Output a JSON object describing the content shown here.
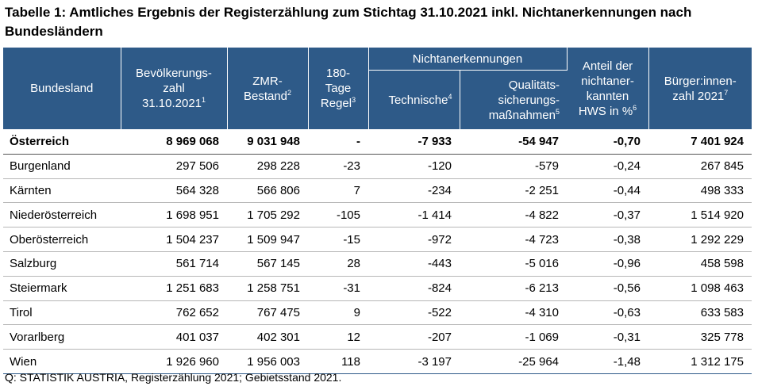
{
  "title": "Tabelle 1: Amtliches Ergebnis der Registerzählung zum Stichtag 31.10.2021 inkl. Nichtanerkennungen nach Bundesländern",
  "header": {
    "bundesland": "Bundesland",
    "bevoelkerung_l1": "Bevölkerungs-",
    "bevoelkerung_l2": "zahl",
    "bevoelkerung_l3": "31.10.2021",
    "bevoelkerung_fn": "1",
    "zmr_l1": "ZMR-",
    "zmr_l2": "Bestand",
    "zmr_fn": "2",
    "tage_l1": "180-",
    "tage_l2": "Tage",
    "tage_l3": "Regel",
    "tage_fn": "3",
    "nicht_group": "Nichtanerkennungen",
    "technische": "Technische",
    "technische_fn": "4",
    "qual_l1": "Qualitäts-",
    "qual_l2": "sicherungs-",
    "qual_l3": "maßnahmen",
    "qual_fn": "5",
    "anteil_l1": "Anteil der",
    "anteil_l2": "nichtaner-",
    "anteil_l3": "kannten",
    "anteil_l4": "HWS in %",
    "anteil_fn": "6",
    "buerger_l1": "Bürger:innen-",
    "buerger_l2": "zahl 2021",
    "buerger_fn": "7"
  },
  "rows": [
    {
      "name": "Österreich",
      "bev": "8 969 068",
      "zmr": "9 031 948",
      "tage": "-",
      "tech": "-7 933",
      "qual": "-54 947",
      "anteil": "-0,70",
      "buerger": "7 401 924"
    },
    {
      "name": "Burgenland",
      "bev": "297 506",
      "zmr": "298 228",
      "tage": "-23",
      "tech": "-120",
      "qual": "-579",
      "anteil": "-0,24",
      "buerger": "267 845"
    },
    {
      "name": "Kärnten",
      "bev": "564 328",
      "zmr": "566 806",
      "tage": "7",
      "tech": "-234",
      "qual": "-2 251",
      "anteil": "-0,44",
      "buerger": "498 333"
    },
    {
      "name": "Niederösterreich",
      "bev": "1 698 951",
      "zmr": "1 705 292",
      "tage": "-105",
      "tech": "-1 414",
      "qual": "-4 822",
      "anteil": "-0,37",
      "buerger": "1 514 920"
    },
    {
      "name": "Oberösterreich",
      "bev": "1 504 237",
      "zmr": "1 509 947",
      "tage": "-15",
      "tech": "-972",
      "qual": "-4 723",
      "anteil": "-0,38",
      "buerger": "1 292 229"
    },
    {
      "name": "Salzburg",
      "bev": "561 714",
      "zmr": "567 145",
      "tage": "28",
      "tech": "-443",
      "qual": "-5 016",
      "anteil": "-0,96",
      "buerger": "458 598"
    },
    {
      "name": "Steiermark",
      "bev": "1 251 683",
      "zmr": "1 258 751",
      "tage": "-31",
      "tech": "-824",
      "qual": "-6 213",
      "anteil": "-0,56",
      "buerger": "1 098 463"
    },
    {
      "name": "Tirol",
      "bev": "762 652",
      "zmr": "767 475",
      "tage": "9",
      "tech": "-522",
      "qual": "-4 310",
      "anteil": "-0,63",
      "buerger": "633 583"
    },
    {
      "name": "Vorarlberg",
      "bev": "401 037",
      "zmr": "402 301",
      "tage": "12",
      "tech": "-207",
      "qual": "-1 069",
      "anteil": "-0,31",
      "buerger": "325 778"
    },
    {
      "name": "Wien",
      "bev": "1 926 960",
      "zmr": "1 956 003",
      "tage": "118",
      "tech": "-3 197",
      "qual": "-25 964",
      "anteil": "-1,48",
      "buerger": "1 312 175"
    }
  ],
  "source": "Q: STATISTIK AUSTRIA, Registerzählung 2021; Gebietsstand 2021.",
  "colors": {
    "header_bg": "#2e5a88",
    "header_text": "#ffffff"
  }
}
